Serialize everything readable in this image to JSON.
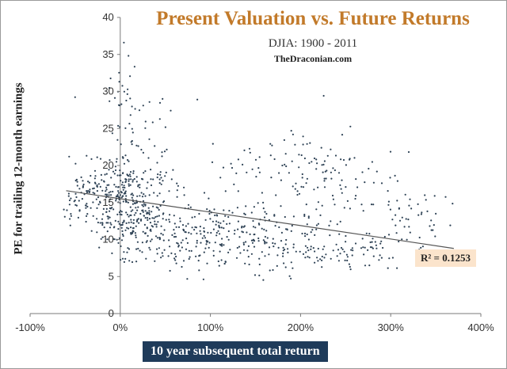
{
  "chart_data": {
    "type": "scatter",
    "title": "Present Valuation vs. Future Returns",
    "subtitle": "DJIA: 1900 - 2011",
    "source": "TheDraconian.com",
    "xlabel": "10 year subsequent total return",
    "ylabel": "PE for trailing 12-month earnings",
    "xlim": [
      -100,
      400
    ],
    "ylim": [
      0,
      40
    ],
    "x_ticks": [
      "-100%",
      "0%",
      "100%",
      "200%",
      "300%",
      "400%"
    ],
    "y_ticks": [
      "0",
      "5",
      "10",
      "15",
      "20",
      "25",
      "30",
      "35",
      "40"
    ],
    "trendline": {
      "x": [
        -60,
        370
      ],
      "y": [
        16.6,
        8.8
      ]
    },
    "r_squared_label": "R² = 0.1253",
    "point_color": "#2f4356",
    "line_color": "#555555",
    "clusters": [
      {
        "cx": 5,
        "cy": 15,
        "sx": 22,
        "sy": 3.2,
        "n": 320
      },
      {
        "cx": -40,
        "cy": 16,
        "sx": 14,
        "sy": 2.0,
        "n": 60
      },
      {
        "cx": 60,
        "cy": 11,
        "sx": 40,
        "sy": 2.5,
        "n": 200
      },
      {
        "cx": 150,
        "cy": 10,
        "sx": 50,
        "sy": 2.0,
        "n": 170
      },
      {
        "cx": 240,
        "cy": 8,
        "sx": 45,
        "sy": 1.3,
        "n": 90
      },
      {
        "cx": 210,
        "cy": 19,
        "sx": 45,
        "sy": 3.2,
        "n": 140
      },
      {
        "cx": 320,
        "cy": 13,
        "sx": 30,
        "sy": 2.0,
        "n": 45
      },
      {
        "cx": 20,
        "cy": 25,
        "sx": 22,
        "sy": 3.5,
        "n": 45
      },
      {
        "cx": 2,
        "cy": 31,
        "sx": 8,
        "sy": 2.5,
        "n": 14
      }
    ]
  }
}
